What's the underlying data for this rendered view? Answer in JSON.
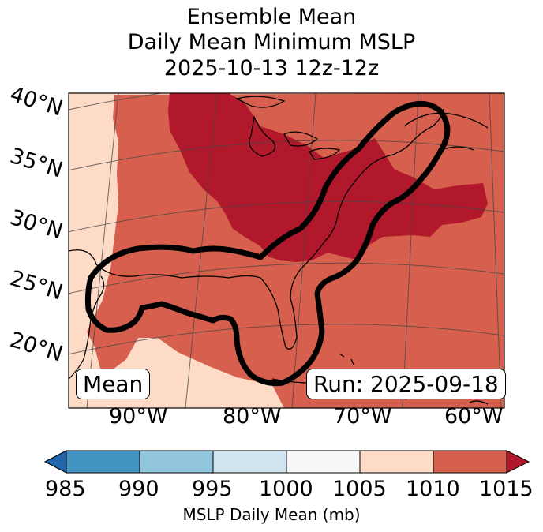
{
  "title": {
    "line1": "Ensemble Mean",
    "line2": "Daily Mean Minimum MSLP",
    "line3": "2025-10-13 12z-12z"
  },
  "map": {
    "lat_labels": [
      "40°N",
      "35°N",
      "30°N",
      "25°N",
      "20°N"
    ],
    "lon_labels": [
      "90°W",
      "80°W",
      "70°W",
      "60°W"
    ],
    "mean_box": "Mean",
    "run_box": "Run: 2025-09-18",
    "fill_colors": {
      "band_1005_1010": "#fddbc7",
      "band_1010_1015": "#d6604d",
      "band_above_1015": "#b2182b"
    }
  },
  "colorbar": {
    "ticks": [
      "985",
      "990",
      "995",
      "1000",
      "1005",
      "1010",
      "1015"
    ],
    "label": "MSLP Daily Mean (mb)",
    "colors": [
      "#2166ac",
      "#4393c3",
      "#92c5de",
      "#d1e5f0",
      "#f7f7f7",
      "#fddbc7",
      "#d6604d",
      "#b2182b"
    ]
  }
}
